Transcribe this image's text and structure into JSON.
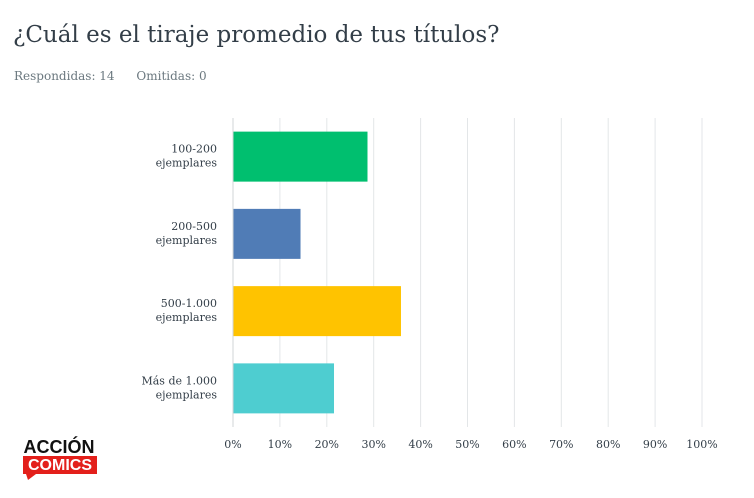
{
  "question": {
    "title": "¿Cuál es el tiraje promedio de tus títulos?",
    "answered_label": "Respondidas: 14",
    "skipped_label": "Omitidas: 0"
  },
  "logo": {
    "line1": "ACCIÓN",
    "line2": "COMICS",
    "colors": {
      "red": "#e3201b",
      "black": "#111111"
    }
  },
  "chart_data": {
    "type": "bar",
    "orientation": "horizontal",
    "categories": [
      [
        "100-200",
        "ejemplares"
      ],
      [
        "200-500",
        "ejemplares"
      ],
      [
        "500-1.000",
        "ejemplares"
      ],
      [
        "Más de 1.000",
        "ejemplares"
      ]
    ],
    "values": [
      28.57,
      14.29,
      35.71,
      21.43
    ],
    "colors": [
      "#00bf6f",
      "#507cb6",
      "#ffc300",
      "#4ecdd0"
    ],
    "xlim": [
      0,
      100
    ],
    "xticks": [
      "0%",
      "10%",
      "20%",
      "30%",
      "40%",
      "50%",
      "60%",
      "70%",
      "80%",
      "90%",
      "100%"
    ],
    "grid": true
  }
}
